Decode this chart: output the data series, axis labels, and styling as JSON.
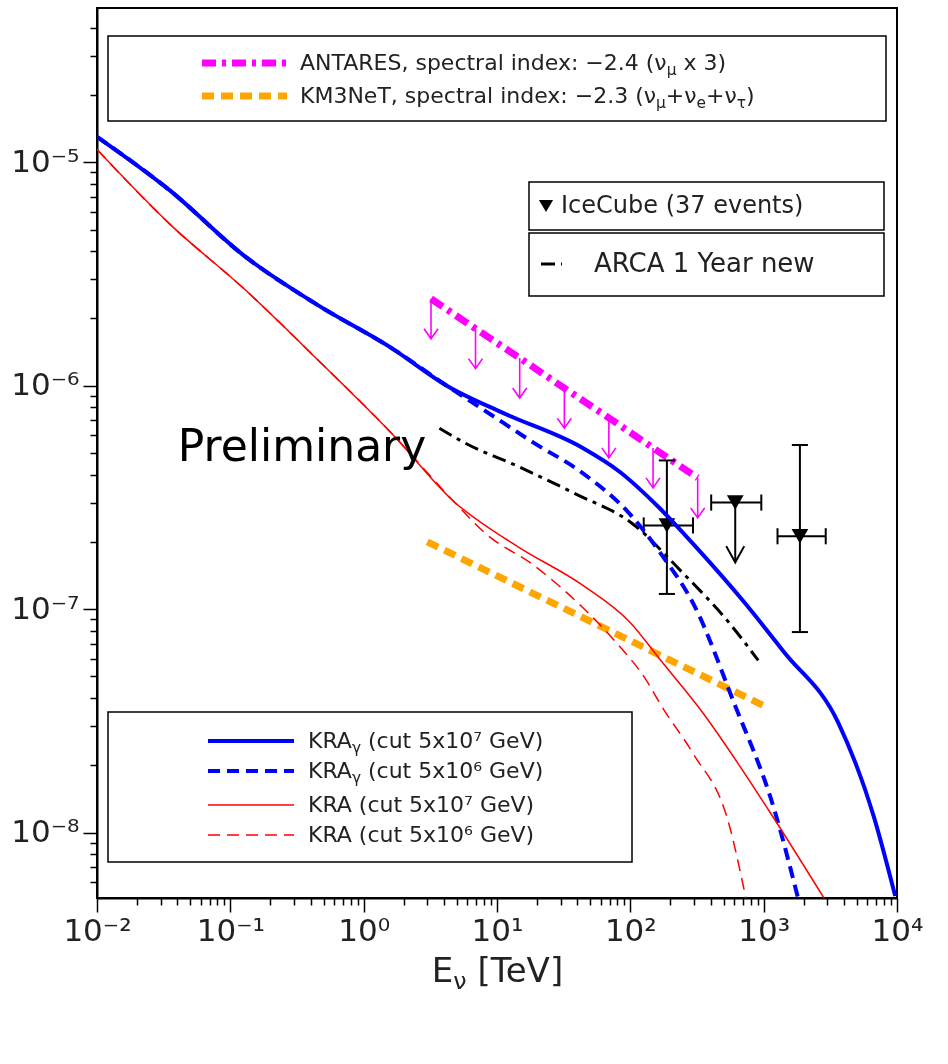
{
  "chart_data": {
    "type": "line",
    "xlabel": "E$_{ν}$ [TeV]",
    "log": "xy",
    "grid": false,
    "legend": "top right",
    "xlim": [
      0.01,
      10000
    ],
    "ylim": [
      5.1e-09,
      4.9e-05
    ],
    "xticks": [
      {
        "value": 0.01,
        "label": "10⁻²"
      },
      {
        "value": 0.1,
        "label": "10⁻¹"
      },
      {
        "value": 1,
        "label": "10⁰"
      },
      {
        "value": 10,
        "label": "10¹"
      },
      {
        "value": 100,
        "label": "10²"
      },
      {
        "value": 1000,
        "label": "10³"
      },
      {
        "value": 10000,
        "label": "10⁴"
      },
      {
        "value": 0.02,
        "label": null
      },
      {
        "value": 0.03,
        "label": null
      },
      {
        "value": 0.04,
        "label": null
      },
      {
        "value": 0.05,
        "label": null
      },
      {
        "value": 0.06,
        "label": null
      },
      {
        "value": 0.07,
        "label": null
      },
      {
        "value": 0.08,
        "label": null
      },
      {
        "value": 0.09,
        "label": null
      },
      {
        "value": 0.2,
        "label": null
      },
      {
        "value": 0.3,
        "label": null
      },
      {
        "value": 0.4,
        "label": null
      },
      {
        "value": 0.5,
        "label": null
      },
      {
        "value": 0.6,
        "label": null
      },
      {
        "value": 0.7,
        "label": null
      },
      {
        "value": 0.8,
        "label": null
      },
      {
        "value": 0.9,
        "label": null
      },
      {
        "value": 2,
        "label": null
      },
      {
        "value": 3,
        "label": null
      },
      {
        "value": 4,
        "label": null
      },
      {
        "value": 5,
        "label": null
      },
      {
        "value": 6,
        "label": null
      },
      {
        "value": 7,
        "label": null
      },
      {
        "value": 8,
        "label": null
      },
      {
        "value": 9,
        "label": null
      },
      {
        "value": 20,
        "label": null
      },
      {
        "value": 30,
        "label": null
      },
      {
        "value": 40,
        "label": null
      },
      {
        "value": 50,
        "label": null
      },
      {
        "value": 60,
        "label": null
      },
      {
        "value": 70,
        "label": null
      },
      {
        "value": 80,
        "label": null
      },
      {
        "value": 90,
        "label": null
      },
      {
        "value": 200,
        "label": null
      },
      {
        "value": 300,
        "label": null
      },
      {
        "value": 400,
        "label": null
      },
      {
        "value": 500,
        "label": null
      },
      {
        "value": 600,
        "label": null
      },
      {
        "value": 700,
        "label": null
      },
      {
        "value": 800,
        "label": null
      },
      {
        "value": 900,
        "label": null
      },
      {
        "value": 2000,
        "label": null
      },
      {
        "value": 3000,
        "label": null
      },
      {
        "value": 4000,
        "label": null
      },
      {
        "value": 5000,
        "label": null
      },
      {
        "value": 6000,
        "label": null
      },
      {
        "value": 7000,
        "label": null
      },
      {
        "value": 8000,
        "label": null
      },
      {
        "value": 9000,
        "label": null
      }
    ],
    "yticks": [
      {
        "value": 1e-08,
        "label": "10⁻⁸"
      },
      {
        "value": 1e-07,
        "label": "10⁻⁷"
      },
      {
        "value": 1e-06,
        "label": "10⁻⁶"
      },
      {
        "value": 1e-05,
        "label": "10⁻⁵"
      },
      {
        "value": 6e-09,
        "label": null
      },
      {
        "value": 7e-09,
        "label": null
      },
      {
        "value": 8e-09,
        "label": null
      },
      {
        "value": 9e-09,
        "label": null
      },
      {
        "value": 2e-08,
        "label": null
      },
      {
        "value": 3e-08,
        "label": null
      },
      {
        "value": 4e-08,
        "label": null
      },
      {
        "value": 5e-08,
        "label": null
      },
      {
        "value": 6e-08,
        "label": null
      },
      {
        "value": 7e-08,
        "label": null
      },
      {
        "value": 8e-08,
        "label": null
      },
      {
        "value": 9e-08,
        "label": null
      },
      {
        "value": 2e-07,
        "label": null
      },
      {
        "value": 3e-07,
        "label": null
      },
      {
        "value": 4e-07,
        "label": null
      },
      {
        "value": 5e-07,
        "label": null
      },
      {
        "value": 6e-07,
        "label": null
      },
      {
        "value": 7e-07,
        "label": null
      },
      {
        "value": 8e-07,
        "label": null
      },
      {
        "value": 9e-07,
        "label": null
      },
      {
        "value": 2e-06,
        "label": null
      },
      {
        "value": 3e-06,
        "label": null
      },
      {
        "value": 4e-06,
        "label": null
      },
      {
        "value": 5e-06,
        "label": null
      },
      {
        "value": 6e-06,
        "label": null
      },
      {
        "value": 7e-06,
        "label": null
      },
      {
        "value": 8e-06,
        "label": null
      },
      {
        "value": 9e-06,
        "label": null
      },
      {
        "value": 2e-05,
        "label": null
      },
      {
        "value": 3e-05,
        "label": null
      },
      {
        "value": 4e-05,
        "label": null
      }
    ],
    "annotations": [
      "Preliminary"
    ],
    "series": [
      {
        "name": "ANTARES, spectral index: −2.4 (ν$_{μ}$ x 3)",
        "color": "#ff00ff",
        "type": "line",
        "line_style": "dashed",
        "x": [
          3.2,
          6.9,
          14.8,
          32,
          69,
          148,
          320
        ],
        "values": [
          2.45e-06,
          1.8e-06,
          1.33e-06,
          9.75e-07,
          7.18e-07,
          5.27e-07,
          3.87e-07
        ]
      },
      {
        "name": "KM3NeT, spectral index: −2.3 (ν$_{μ}$+ν$_{e}$+ν$_{τ}$)",
        "color": "#ffa500",
        "type": "line",
        "line_style": "dashed",
        "x": [
          3,
          1000
        ],
        "values": [
          2e-07,
          3.7e-08
        ]
      },
      {
        "name": "IceCube (37 events)",
        "color": "#000000",
        "type": "scatter",
        "marker": "triangle",
        "x": [
          188,
          612,
          1870
        ],
        "values": [
          2.37e-07,
          3e-07,
          2.12e-07
        ],
        "errors": [
          [
            1.17e-07,
            4.63e-07
          ],
          [
            1.62e-07,
            3e-07
          ],
          [
            7.9e-08,
            5.43e-07
          ]
        ],
        "xerrors": [
          [
            126,
            295
          ],
          [
            404,
            960
          ],
          [
            1270,
            2920
          ]
        ]
      },
      {
        "name": "ARCA 1 Year new",
        "color": "#000000",
        "type": "line",
        "line_style": "dashed",
        "x": [
          3.7,
          5.9,
          14.2,
          38,
          105,
          240,
          550,
          910
        ],
        "values": [
          6.45e-07,
          5.5e-07,
          4.37e-07,
          3.3e-07,
          2.4e-07,
          1.48e-07,
          8.7e-08,
          5.9e-08
        ]
      },
      {
        "name": "KRA$_{γ}$ (cut 5x10⁷ GeV)",
        "color": "#0000ff",
        "type": "line",
        "line_style": "solid",
        "x": [
          0.01,
          0.035,
          0.128,
          0.45,
          1.63,
          4.2,
          11.4,
          43,
          84,
          164,
          320,
          700,
          1430,
          3630,
          6700,
          9700
        ],
        "values": [
          1.3e-05,
          7.5e-06,
          3.8e-06,
          2.3e-06,
          1.47e-06,
          1e-06,
          7.5e-07,
          5.3e-07,
          4.1e-07,
          2.85e-07,
          1.86e-07,
          1.09e-07,
          6.4e-08,
          3.1e-08,
          1.18e-08,
          5.2e-09
        ]
      },
      {
        "name": "KRA$_{γ}$ (cut 5x10⁶ GeV)",
        "color": "#0000ff",
        "type": "line",
        "line_style": "dashed",
        "x": [
          0.01,
          0.035,
          0.128,
          0.45,
          1.63,
          4.2,
          8.2,
          18.9,
          43,
          100,
          173,
          304,
          590,
          1210,
          1810
        ],
        "values": [
          1.3e-05,
          7.5e-06,
          3.8e-06,
          2.3e-06,
          1.47e-06,
          1e-06,
          7.7e-07,
          5.55e-07,
          4.1e-07,
          2.65e-07,
          1.74e-07,
          1.03e-07,
          3.9e-08,
          1.25e-08,
          5.1e-09
        ]
      },
      {
        "name": "KRA (cut 5x10⁷ GeV)",
        "color": "#ff0000",
        "type": "line",
        "line_style": "solid",
        "x": [
          0.01,
          0.035,
          0.128,
          0.45,
          1.63,
          4.7,
          14.2,
          43,
          100,
          173,
          336,
          1100,
          2830
        ],
        "values": [
          1.14e-05,
          5.3e-06,
          2.7e-06,
          1.31e-06,
          6.1e-07,
          3.05e-07,
          1.91e-07,
          1.29e-07,
          8.7e-08,
          5.8e-08,
          3.55e-08,
          1.25e-08,
          5.1e-09
        ]
      },
      {
        "name": "KRA (cut 5x10⁶ GeV)",
        "color": "#ff0000",
        "type": "line",
        "line_style": "dashed",
        "x": [
          0.01,
          0.035,
          0.128,
          0.45,
          1.63,
          4.7,
          8.2,
          18.9,
          43,
          75,
          132,
          173,
          294,
          545,
          735
        ],
        "values": [
          1.14e-05,
          5.3e-06,
          2.7e-06,
          1.31e-06,
          6.1e-07,
          3.05e-07,
          2.18e-07,
          1.57e-07,
          1.03e-07,
          7.3e-08,
          4.8e-08,
          3.65e-08,
          2.27e-08,
          1.11e-08,
          5.1e-09
        ]
      }
    ]
  }
}
